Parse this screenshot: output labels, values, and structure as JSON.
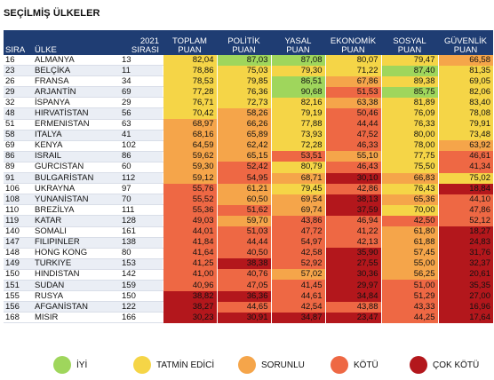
{
  "title": "SEÇİLMİŞ ÜLKELER",
  "colors": {
    "iyi": "#9fd65c",
    "tatmin": "#f5d547",
    "sorunlu": "#f5a54a",
    "kotu": "#ee6844",
    "cok_kotu": "#b3171c",
    "header_bg": "#1f3d73"
  },
  "headers": {
    "sira_line1": "",
    "sira_line2": "SIRA",
    "ulke_line1": "",
    "ulke_line2": "ÜLKE",
    "prev_line1": "2021",
    "prev_line2": "SIRASI",
    "toplam_line1": "TOPLAM",
    "toplam_line2": "PUAN",
    "politik_line1": "POLİTİK",
    "politik_line2": "PUAN",
    "yasal_line1": "YASAL",
    "yasal_line2": "PUAN",
    "ekonomik_line1": "EKONOMİK",
    "ekonomik_line2": "PUAN",
    "sosyal_line1": "SOSYAL",
    "sosyal_line2": "PUAN",
    "guvenlik_line1": "GÜVENLİK",
    "guvenlik_line2": "PUAN"
  },
  "rows": [
    {
      "rank": "16",
      "country": "ALMANYA",
      "prev": "13",
      "scores": [
        "82,04",
        "87,03",
        "87,08",
        "80,07",
        "79,47",
        "66,58"
      ],
      "levels": [
        "tatmin",
        "iyi",
        "iyi",
        "tatmin",
        "tatmin",
        "sorunlu"
      ]
    },
    {
      "rank": "23",
      "country": "BELÇİKA",
      "prev": "11",
      "scores": [
        "78,86",
        "75,03",
        "79,30",
        "71,22",
        "87,40",
        "81,35"
      ],
      "levels": [
        "tatmin",
        "tatmin",
        "tatmin",
        "tatmin",
        "iyi",
        "tatmin"
      ]
    },
    {
      "rank": "26",
      "country": "FRANSA",
      "prev": "34",
      "scores": [
        "78,53",
        "79,85",
        "86,51",
        "67,86",
        "89,38",
        "69,05"
      ],
      "levels": [
        "tatmin",
        "tatmin",
        "iyi",
        "sorunlu",
        "tatmin",
        "tatmin"
      ]
    },
    {
      "rank": "29",
      "country": "ARJANTİN",
      "prev": "69",
      "scores": [
        "77,28",
        "76,36",
        "90,68",
        "51,53",
        "85,75",
        "82,06"
      ],
      "levels": [
        "tatmin",
        "tatmin",
        "iyi",
        "kotu",
        "iyi",
        "tatmin"
      ]
    },
    {
      "rank": "32",
      "country": "İSPANYA",
      "prev": "29",
      "scores": [
        "76,71",
        "72,73",
        "82,16",
        "63,38",
        "81,89",
        "83,40"
      ],
      "levels": [
        "tatmin",
        "tatmin",
        "tatmin",
        "sorunlu",
        "tatmin",
        "tatmin"
      ]
    },
    {
      "rank": "48",
      "country": "HIRVATİSTAN",
      "prev": "56",
      "scores": [
        "70,42",
        "58,26",
        "79,19",
        "50,46",
        "76,09",
        "78,08"
      ],
      "levels": [
        "tatmin",
        "sorunlu",
        "tatmin",
        "kotu",
        "tatmin",
        "tatmin"
      ]
    },
    {
      "rank": "51",
      "country": "ERMENİSTAN",
      "prev": "63",
      "scores": [
        "68,97",
        "66,26",
        "77,88",
        "44,44",
        "76,33",
        "79,91"
      ],
      "levels": [
        "sorunlu",
        "sorunlu",
        "tatmin",
        "kotu",
        "tatmin",
        "tatmin"
      ]
    },
    {
      "rank": "58",
      "country": "İTALYA",
      "prev": "41",
      "scores": [
        "68,16",
        "65,89",
        "73,93",
        "47,52",
        "80,00",
        "73,48"
      ],
      "levels": [
        "sorunlu",
        "sorunlu",
        "tatmin",
        "kotu",
        "tatmin",
        "tatmin"
      ]
    },
    {
      "rank": "69",
      "country": "KENYA",
      "prev": "102",
      "scores": [
        "64,59",
        "62,42",
        "72,28",
        "46,33",
        "78,00",
        "63,92"
      ],
      "levels": [
        "sorunlu",
        "sorunlu",
        "tatmin",
        "kotu",
        "tatmin",
        "sorunlu"
      ]
    },
    {
      "rank": "86",
      "country": "İSRAİL",
      "prev": "86",
      "scores": [
        "59,62",
        "65,15",
        "53,51",
        "55,10",
        "77,75",
        "46,61"
      ],
      "levels": [
        "sorunlu",
        "sorunlu",
        "kotu",
        "sorunlu",
        "tatmin",
        "kotu"
      ]
    },
    {
      "rank": "89",
      "country": "GÜRCİSTAN",
      "prev": "60",
      "scores": [
        "59,30",
        "52,42",
        "80,79",
        "46,43",
        "75,50",
        "41,34"
      ],
      "levels": [
        "sorunlu",
        "kotu",
        "tatmin",
        "kotu",
        "tatmin",
        "kotu"
      ]
    },
    {
      "rank": "91",
      "country": "BULGARİSTAN",
      "prev": "112",
      "scores": [
        "59,12",
        "54,95",
        "68,71",
        "30,10",
        "66,83",
        "75,02"
      ],
      "levels": [
        "sorunlu",
        "kotu",
        "sorunlu",
        "cok_kotu",
        "sorunlu",
        "tatmin"
      ]
    },
    {
      "rank": "106",
      "country": "UKRAYNA",
      "prev": "97",
      "scores": [
        "55,76",
        "61,21",
        "79,45",
        "42,86",
        "76,43",
        "18,84"
      ],
      "levels": [
        "kotu",
        "sorunlu",
        "tatmin",
        "kotu",
        "tatmin",
        "cok_kotu"
      ]
    },
    {
      "rank": "108",
      "country": "YUNANİSTAN",
      "prev": "70",
      "scores": [
        "55,52",
        "60,50",
        "69,54",
        "38,13",
        "65,36",
        "44,10"
      ],
      "levels": [
        "kotu",
        "sorunlu",
        "sorunlu",
        "cok_kotu",
        "sorunlu",
        "kotu"
      ]
    },
    {
      "rank": "110",
      "country": "BREZİLYA",
      "prev": "111",
      "scores": [
        "55,36",
        "51,62",
        "69,74",
        "37,59",
        "70,00",
        "47,86"
      ],
      "levels": [
        "kotu",
        "kotu",
        "sorunlu",
        "cok_kotu",
        "tatmin",
        "kotu"
      ]
    },
    {
      "rank": "119",
      "country": "KATAR",
      "prev": "128",
      "scores": [
        "49,03",
        "59,70",
        "43,86",
        "46,94",
        "42,50",
        "52,12"
      ],
      "levels": [
        "kotu",
        "sorunlu",
        "kotu",
        "kotu",
        "kotu",
        "kotu"
      ]
    },
    {
      "rank": "140",
      "country": "SOMALİ",
      "prev": "161",
      "scores": [
        "44,01",
        "51,03",
        "47,72",
        "41,22",
        "61,80",
        "18,27"
      ],
      "levels": [
        "kotu",
        "kotu",
        "kotu",
        "kotu",
        "sorunlu",
        "cok_kotu"
      ]
    },
    {
      "rank": "147",
      "country": "FİLİPİNLER",
      "prev": "138",
      "scores": [
        "41,84",
        "44,44",
        "54,97",
        "42,13",
        "61,88",
        "24,83"
      ],
      "levels": [
        "kotu",
        "kotu",
        "kotu",
        "kotu",
        "sorunlu",
        "cok_kotu"
      ]
    },
    {
      "rank": "148",
      "country": "HONG KONG",
      "prev": "80",
      "scores": [
        "41,64",
        "40,50",
        "42,58",
        "35,90",
        "57,45",
        "31,76"
      ],
      "levels": [
        "kotu",
        "kotu",
        "kotu",
        "cok_kotu",
        "sorunlu",
        "cok_kotu"
      ]
    },
    {
      "rank": "149",
      "country": "TÜRKİYE",
      "prev": "153",
      "scores": [
        "41,25",
        "38,38",
        "52,92",
        "27,55",
        "55,00",
        "32,37"
      ],
      "levels": [
        "kotu",
        "cok_kotu",
        "kotu",
        "cok_kotu",
        "sorunlu",
        "cok_kotu"
      ]
    },
    {
      "rank": "150",
      "country": "HİNDİSTAN",
      "prev": "142",
      "scores": [
        "41,00",
        "40,76",
        "57,02",
        "30,36",
        "56,25",
        "20,61"
      ],
      "levels": [
        "kotu",
        "kotu",
        "sorunlu",
        "cok_kotu",
        "sorunlu",
        "cok_kotu"
      ]
    },
    {
      "rank": "151",
      "country": "SUDAN",
      "prev": "159",
      "scores": [
        "40,96",
        "47,05",
        "41,45",
        "29,97",
        "51,00",
        "35,35"
      ],
      "levels": [
        "kotu",
        "kotu",
        "kotu",
        "cok_kotu",
        "kotu",
        "cok_kotu"
      ]
    },
    {
      "rank": "155",
      "country": "RUSYA",
      "prev": "150",
      "scores": [
        "38,82",
        "36,36",
        "44,61",
        "34,84",
        "51,29",
        "27,00"
      ],
      "levels": [
        "cok_kotu",
        "cok_kotu",
        "kotu",
        "cok_kotu",
        "kotu",
        "cok_kotu"
      ]
    },
    {
      "rank": "156",
      "country": "AFGANİSTAN",
      "prev": "122",
      "scores": [
        "38,27",
        "44,65",
        "42,54",
        "43,88",
        "43,33",
        "16,96"
      ],
      "levels": [
        "cok_kotu",
        "kotu",
        "kotu",
        "kotu",
        "kotu",
        "cok_kotu"
      ]
    },
    {
      "rank": "168",
      "country": "MISIR",
      "prev": "166",
      "scores": [
        "30,23",
        "30,91",
        "34,87",
        "23,47",
        "44,25",
        "17,64"
      ],
      "levels": [
        "cok_kotu",
        "cok_kotu",
        "cok_kotu",
        "cok_kotu",
        "kotu",
        "cok_kotu"
      ]
    }
  ],
  "legend": [
    {
      "key": "iyi",
      "label": "İYİ"
    },
    {
      "key": "tatmin",
      "label": "TATMİN EDİCİ"
    },
    {
      "key": "sorunlu",
      "label": "SORUNLU"
    },
    {
      "key": "kotu",
      "label": "KÖTÜ"
    },
    {
      "key": "cok_kotu",
      "label": "ÇOK KÖTÜ"
    }
  ]
}
